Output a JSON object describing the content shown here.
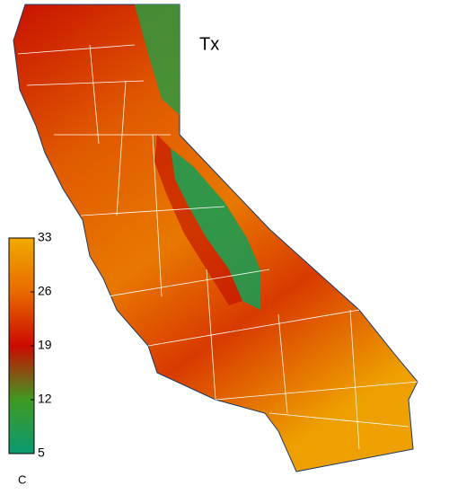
{
  "title": "Tx",
  "colorbar": {
    "lim": [
      5,
      33
    ],
    "ticks": [
      5,
      12,
      19,
      26,
      33
    ],
    "unit": "C",
    "colors": [
      "#0a9a72",
      "#3f9a22",
      "#cc0a00",
      "#e86a00",
      "#f2aa00"
    ]
  }
}
